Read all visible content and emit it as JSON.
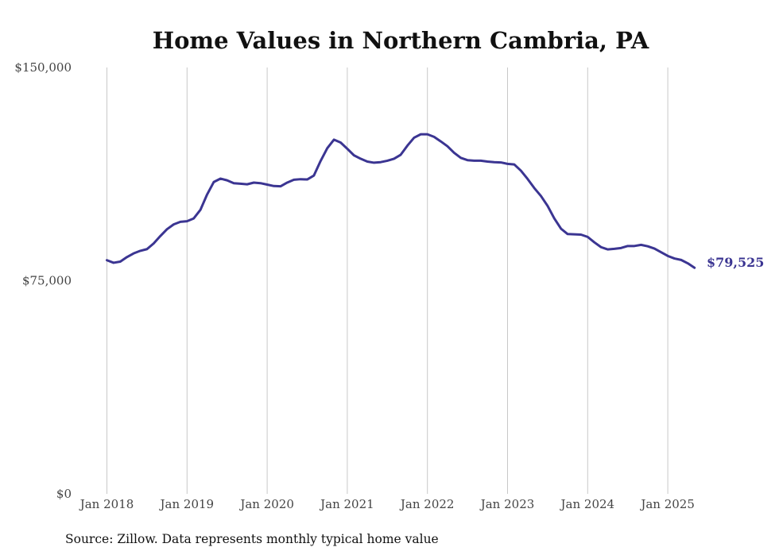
{
  "chart_data": {
    "type": "line",
    "title": "Home Values in Northern Cambria, PA",
    "source": "Source: Zillow. Data represents monthly typical home value",
    "ylim": [
      0,
      150000
    ],
    "y_ticks": [
      {
        "value": 0,
        "label": "$0"
      },
      {
        "value": 75000,
        "label": "$75,000"
      },
      {
        "value": 150000,
        "label": "$150,000"
      }
    ],
    "x_ticks": [
      {
        "date": "2018-01",
        "label": "Jan 2018"
      },
      {
        "date": "2019-01",
        "label": "Jan 2019"
      },
      {
        "date": "2020-01",
        "label": "Jan 2020"
      },
      {
        "date": "2021-01",
        "label": "Jan 2021"
      },
      {
        "date": "2022-01",
        "label": "Jan 2022"
      },
      {
        "date": "2023-01",
        "label": "Jan 2023"
      },
      {
        "date": "2024-01",
        "label": "Jan 2024"
      },
      {
        "date": "2025-01",
        "label": "Jan 2025"
      }
    ],
    "grid": "vertical",
    "line_color": "#3b3592",
    "end_label": "$79,525",
    "series": [
      {
        "x": [
          "2018-01",
          "2018-02",
          "2018-03",
          "2018-04",
          "2018-05",
          "2018-06",
          "2018-07",
          "2018-08",
          "2018-09",
          "2018-10",
          "2018-11",
          "2018-12",
          "2019-01",
          "2019-02",
          "2019-03",
          "2019-04",
          "2019-05",
          "2019-06",
          "2019-07",
          "2019-08",
          "2019-09",
          "2019-10",
          "2019-11",
          "2019-12",
          "2020-01",
          "2020-02",
          "2020-03",
          "2020-04",
          "2020-05",
          "2020-06",
          "2020-07",
          "2020-08",
          "2020-09",
          "2020-10",
          "2020-11",
          "2020-12",
          "2021-01",
          "2021-02",
          "2021-03",
          "2021-04",
          "2021-05",
          "2021-06",
          "2021-07",
          "2021-08",
          "2021-09",
          "2021-10",
          "2021-11",
          "2021-12",
          "2022-01",
          "2022-02",
          "2022-03",
          "2022-04",
          "2022-05",
          "2022-06",
          "2022-07",
          "2022-08",
          "2022-09",
          "2022-10",
          "2022-11",
          "2022-12",
          "2023-01",
          "2023-02",
          "2023-03",
          "2023-04",
          "2023-05",
          "2023-06",
          "2023-07",
          "2023-08",
          "2023-09",
          "2023-10",
          "2023-11",
          "2023-12",
          "2024-01",
          "2024-02",
          "2024-03",
          "2024-04",
          "2024-05",
          "2024-06",
          "2024-07",
          "2024-08",
          "2024-09",
          "2024-10",
          "2024-11",
          "2024-12",
          "2025-01",
          "2025-02",
          "2025-03",
          "2025-04",
          "2025-05"
        ],
        "values": [
          82200,
          81300,
          81700,
          83300,
          84600,
          85500,
          86100,
          88100,
          90700,
          93100,
          94800,
          95700,
          95900,
          96900,
          99900,
          105300,
          109700,
          110900,
          110300,
          109300,
          109100,
          108900,
          109500,
          109300,
          108800,
          108300,
          108200,
          109500,
          110500,
          110700,
          110600,
          112000,
          117100,
          121600,
          124600,
          123600,
          121400,
          119100,
          117900,
          116900,
          116500,
          116700,
          117200,
          117900,
          119300,
          122500,
          125300,
          126500,
          126500,
          125600,
          124000,
          122300,
          120000,
          118200,
          117400,
          117200,
          117200,
          116900,
          116700,
          116600,
          116100,
          115900,
          113700,
          110800,
          107600,
          104800,
          101300,
          96900,
          93300,
          91400,
          91300,
          91200,
          90400,
          88500,
          86800,
          86000,
          86200,
          86500,
          87200,
          87200,
          87600,
          87100,
          86300,
          85000,
          83700,
          82800,
          82300,
          81100,
          79525
        ]
      }
    ]
  }
}
